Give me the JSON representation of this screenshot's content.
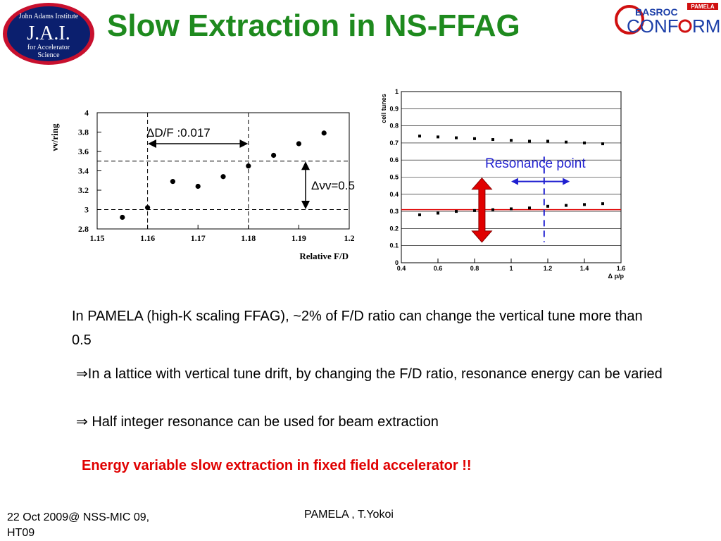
{
  "slide": {
    "title": "Slow Extraction in NS-FFAG",
    "logo_left": {
      "line1": "John Adams Institute",
      "line2": "J.A.I.",
      "line3": "for Accelerator",
      "line4": "Science"
    },
    "logo_right": {
      "text1": "BASROC",
      "text2": "CONF",
      "text3": "RM",
      "text4": "PAMELA"
    },
    "paragraph1": "In PAMELA (high-K scaling FFAG), ~2% of F/D ratio can change the vertical tune more than 0.5",
    "paragraph2": "⇒In a lattice with vertical tune drift, by changing the F/D ratio, resonance energy can be varied",
    "paragraph3": "⇒ Half integer resonance can be used for beam extraction",
    "highlight": "Energy variable slow extraction in fixed field accelerator !!",
    "footer_left": "22 Oct 2009@ NSS-MIC 09, HT09",
    "footer_center": "PAMELA , T.Yokoi"
  },
  "colors": {
    "title": "#1e8a1e",
    "highlight": "#e00000",
    "annotation_blue": "#1f1fd0",
    "resonance_line": "#e00000",
    "arrow_red": "#e00000"
  },
  "chart_data": [
    {
      "type": "scatter",
      "xlabel": "Relative F/D",
      "ylabel": "νv/ring",
      "xlim": [
        1.15,
        1.2
      ],
      "ylim": [
        2.8,
        4.0
      ],
      "x_ticks": [
        "1.15",
        "1.16",
        "1.17",
        "1.18",
        "1.19",
        "1.2"
      ],
      "y_ticks": [
        "2.8",
        "3",
        "3.2",
        "3.4",
        "3.6",
        "3.8",
        "4"
      ],
      "points": [
        {
          "x": 1.155,
          "y": 2.92
        },
        {
          "x": 1.16,
          "y": 3.02
        },
        {
          "x": 1.165,
          "y": 3.29
        },
        {
          "x": 1.17,
          "y": 3.24
        },
        {
          "x": 1.175,
          "y": 3.34
        },
        {
          "x": 1.18,
          "y": 3.45
        },
        {
          "x": 1.185,
          "y": 3.56
        },
        {
          "x": 1.19,
          "y": 3.68
        },
        {
          "x": 1.195,
          "y": 3.79
        }
      ],
      "annotations": {
        "df_label": "ΔD/F :0.017",
        "dnu_label": "Δνv=0.5",
        "df_range": [
          1.16,
          1.18
        ],
        "dnu_range": [
          3.0,
          3.5
        ]
      }
    },
    {
      "type": "scatter",
      "xlabel": "Δ p/p",
      "ylabel": "cell tunes",
      "xlim": [
        0.4,
        1.6
      ],
      "ylim": [
        0,
        1
      ],
      "x_ticks": [
        "0.4",
        "0.6",
        "0.8",
        "1",
        "1.2",
        "1.4",
        "1.6"
      ],
      "y_ticks": [
        "0",
        "0.1",
        "0.2",
        "0.3",
        "0.4",
        "0.5",
        "0.6",
        "0.7",
        "0.8",
        "0.9",
        "1"
      ],
      "series": [
        {
          "values": [
            [
              0.5,
              0.74
            ],
            [
              0.6,
              0.735
            ],
            [
              0.7,
              0.73
            ],
            [
              0.8,
              0.725
            ],
            [
              0.9,
              0.72
            ],
            [
              1.0,
              0.715
            ],
            [
              1.1,
              0.71
            ],
            [
              1.2,
              0.71
            ],
            [
              1.3,
              0.705
            ],
            [
              1.4,
              0.7
            ],
            [
              1.5,
              0.695
            ]
          ]
        },
        {
          "values": [
            [
              0.5,
              0.28
            ],
            [
              0.6,
              0.29
            ],
            [
              0.7,
              0.3
            ],
            [
              0.8,
              0.305
            ],
            [
              0.9,
              0.31
            ],
            [
              1.0,
              0.315
            ],
            [
              1.1,
              0.32
            ],
            [
              1.2,
              0.33
            ],
            [
              1.3,
              0.335
            ],
            [
              1.4,
              0.34
            ],
            [
              1.5,
              0.345
            ]
          ]
        }
      ],
      "resonance_line_y": 0.31,
      "resonance_point_x": 1.18,
      "annotation": "Resonance point"
    }
  ]
}
